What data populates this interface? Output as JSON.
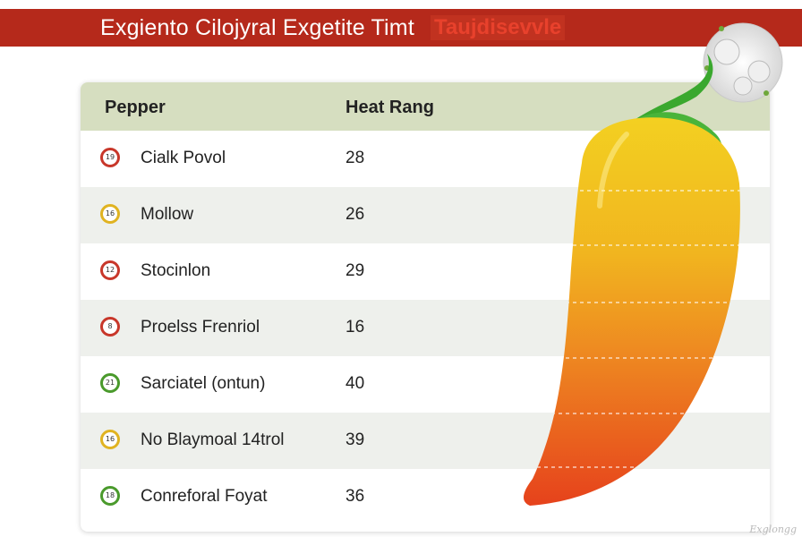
{
  "header": {
    "title": "Exgiento Cilojyral Exgetite Timt",
    "accent": "Taujdisevvle"
  },
  "table": {
    "columns": [
      "Pepper",
      "Heat Rang"
    ],
    "rows": [
      {
        "badge": "19",
        "name": "Cialk Povol",
        "heat": "28",
        "badge_color": "#c8372a"
      },
      {
        "badge": "16",
        "name": "Mollow",
        "heat": "26",
        "badge_color": "#e0b321"
      },
      {
        "badge": "12",
        "name": "Stocinlon",
        "heat": "29",
        "badge_color": "#c8372a"
      },
      {
        "badge": "8",
        "name": "Proelss Frenriol",
        "heat": "16",
        "badge_color": "#c8372a"
      },
      {
        "badge": "21",
        "name": "Sarciatel (ontun)",
        "heat": "40",
        "badge_color": "#4a9a2c"
      },
      {
        "badge": "16",
        "name": "No Blaymoal 14trol",
        "heat": "39",
        "badge_color": "#e0b321"
      },
      {
        "badge": "18",
        "name": "Conreforal Foyat",
        "heat": "36",
        "badge_color": "#4a9a2c"
      }
    ]
  },
  "footer": {
    "watermark": "Exglongg"
  },
  "colors": {
    "banner": "#b5291b",
    "header_row": "#d6dec0",
    "alt_row": "#eef0ec",
    "pepper_top": "#f2c81f",
    "pepper_bottom": "#e8411d",
    "stem": "#3aa82e"
  }
}
